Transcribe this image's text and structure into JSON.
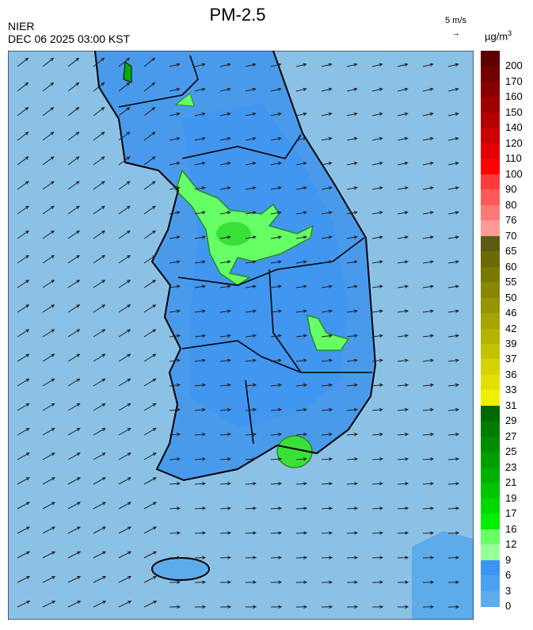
{
  "header": {
    "title": "PM-2.5",
    "agency": "NIER",
    "timestamp": "DEC 06 2025 03:00 KST",
    "reference_vector": "5 m/s",
    "reference_arrow": "→"
  },
  "legend": {
    "unit": "µg/m",
    "unit_exp": "3",
    "labels": [
      "200",
      "170",
      "160",
      "150",
      "140",
      "120",
      "110",
      "100",
      "90",
      "80",
      "76",
      "70",
      "65",
      "60",
      "55",
      "50",
      "46",
      "42",
      "39",
      "37",
      "36",
      "33",
      "31",
      "29",
      "27",
      "25",
      "23",
      "21",
      "19",
      "17",
      "16",
      "12",
      "9",
      "6",
      "3",
      "0"
    ],
    "colors": [
      "#5c0000",
      "#720000",
      "#880000",
      "#9e0000",
      "#b40000",
      "#cc0000",
      "#e40000",
      "#ff0000",
      "#ff3a3a",
      "#ff5a5a",
      "#ff7878",
      "#ff9a96",
      "#5b5b14",
      "#6b6b06",
      "#797900",
      "#878800",
      "#969600",
      "#a5a500",
      "#b3b300",
      "#c4c200",
      "#d6d400",
      "#e3e000",
      "#f2ee00",
      "#006a00",
      "#007c00",
      "#008c00",
      "#009e00",
      "#00b000",
      "#00c400",
      "#00d800",
      "#00ee00",
      "#66ff66",
      "#99ff99",
      "#3a95f5",
      "#4ba0ef",
      "#5eabeb",
      "#84bde6",
      "#98c8e4"
    ]
  },
  "map": {
    "sea_color": "#8cc1e6",
    "land_color": "#4a9aec",
    "inland_color": "#4196f0",
    "hotspot_color": "#66ff66",
    "hotspot_core": "#3ae03a",
    "wind_direction": "east-northeast"
  }
}
